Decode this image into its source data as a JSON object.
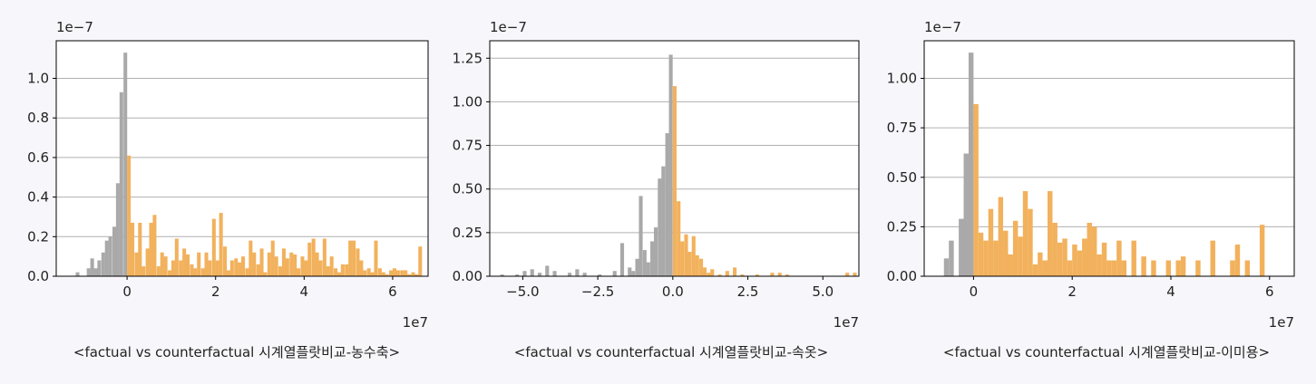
{
  "colors": {
    "negative_bar": "#a9a9a9",
    "positive_bar": "#f2b15c",
    "grid": "#b0b0b0",
    "axis": "#000000"
  },
  "chart_data": [
    {
      "type": "bar",
      "caption": "<factual vs counterfactual 시계열플랏비교-농수축>",
      "multiplier_y": "1e−7",
      "multiplier_x": "1e7",
      "xlim": [
        -1.6,
        6.8
      ],
      "ylim": [
        0,
        1.19
      ],
      "xticks": [
        0,
        2,
        4,
        6
      ],
      "xtick_labels": [
        "0",
        "2",
        "4",
        "6"
      ],
      "yticks": [
        0.0,
        0.2,
        0.4,
        0.6,
        0.8,
        1.0
      ],
      "ytick_labels": [
        "0.0",
        "0.2",
        "0.4",
        "0.6",
        "0.8",
        "1.0"
      ],
      "grid": "y",
      "bin_width": 0.083,
      "series": [
        {
          "color_key": "negative_bar",
          "x": [
            -1.16,
            -0.91,
            -0.83,
            -0.75,
            -0.67,
            -0.58,
            -0.5,
            -0.42,
            -0.33,
            -0.25,
            -0.17,
            -0.08
          ],
          "y": [
            0.02,
            0.04,
            0.09,
            0.04,
            0.08,
            0.12,
            0.18,
            0.2,
            0.25,
            0.47,
            0.93,
            1.13
          ]
        },
        {
          "color_key": "positive_bar",
          "x": [
            0.0,
            0.08,
            0.17,
            0.25,
            0.33,
            0.42,
            0.5,
            0.58,
            0.67,
            0.75,
            0.83,
            0.92,
            1.0,
            1.08,
            1.17,
            1.25,
            1.33,
            1.42,
            1.5,
            1.58,
            1.67,
            1.75,
            1.83,
            1.92,
            2.0,
            2.08,
            2.17,
            2.25,
            2.33,
            2.42,
            2.5,
            2.58,
            2.67,
            2.75,
            2.83,
            2.92,
            3.0,
            3.08,
            3.17,
            3.25,
            3.33,
            3.42,
            3.5,
            3.58,
            3.67,
            3.75,
            3.83,
            3.92,
            4.0,
            4.08,
            4.17,
            4.25,
            4.33,
            4.42,
            4.5,
            4.58,
            4.67,
            4.75,
            4.83,
            4.92,
            5.0,
            5.08,
            5.17,
            5.25,
            5.33,
            5.42,
            5.5,
            5.58,
            5.67,
            5.75,
            5.83,
            5.92,
            6.0,
            6.08,
            6.17,
            6.25,
            6.33,
            6.42,
            6.5,
            6.58,
            6.67
          ],
          "y": [
            0.61,
            0.27,
            0.12,
            0.27,
            0.05,
            0.14,
            0.27,
            0.31,
            0.05,
            0.12,
            0.1,
            0.03,
            0.08,
            0.19,
            0.08,
            0.14,
            0.11,
            0.06,
            0.04,
            0.12,
            0.04,
            0.12,
            0.08,
            0.29,
            0.08,
            0.32,
            0.15,
            0.03,
            0.08,
            0.09,
            0.07,
            0.1,
            0.04,
            0.18,
            0.12,
            0.06,
            0.14,
            0.02,
            0.12,
            0.18,
            0.1,
            0.05,
            0.14,
            0.09,
            0.12,
            0.11,
            0.04,
            0.1,
            0.08,
            0.17,
            0.19,
            0.12,
            0.08,
            0.19,
            0.05,
            0.1,
            0.04,
            0.02,
            0.06,
            0.06,
            0.18,
            0.18,
            0.14,
            0.08,
            0.03,
            0.04,
            0.02,
            0.18,
            0.04,
            0.02,
            0.01,
            0.03,
            0.04,
            0.03,
            0.03,
            0.03,
            0.01,
            0.02,
            0.01,
            0.15,
            0.0
          ]
        }
      ]
    },
    {
      "type": "bar",
      "caption": "<factual vs counterfactual 시계열플랏비교-속옷>",
      "multiplier_y": "1e−7",
      "multiplier_x": "1e7",
      "xlim": [
        -6.1,
        6.2
      ],
      "ylim": [
        0,
        1.35
      ],
      "xticks": [
        -5.0,
        -2.5,
        0.0,
        2.5,
        5.0
      ],
      "xtick_labels": [
        "−5.0",
        "−2.5",
        "0.0",
        "2.5",
        "5.0"
      ],
      "yticks": [
        0.0,
        0.25,
        0.5,
        0.75,
        1.0,
        1.25
      ],
      "ytick_labels": [
        "0.00",
        "0.25",
        "0.50",
        "0.75",
        "1.00",
        "1.25"
      ],
      "grid": "y",
      "bin_width": 0.125,
      "series": [
        {
          "color_key": "negative_bar",
          "x": [
            -5.75,
            -5.25,
            -5.0,
            -4.75,
            -4.5,
            -4.25,
            -4.0,
            -3.5,
            -3.25,
            -3.0,
            -2.5,
            -2.0,
            -1.75,
            -1.5,
            -1.38,
            -1.25,
            -1.13,
            -1.0,
            -0.88,
            -0.75,
            -0.63,
            -0.5,
            -0.38,
            -0.25,
            -0.13
          ],
          "y": [
            0.01,
            0.01,
            0.03,
            0.04,
            0.02,
            0.06,
            0.03,
            0.02,
            0.04,
            0.02,
            0.01,
            0.03,
            0.19,
            0.05,
            0.03,
            0.1,
            0.46,
            0.15,
            0.08,
            0.2,
            0.28,
            0.56,
            0.63,
            0.82,
            1.27
          ]
        },
        {
          "color_key": "positive_bar",
          "x": [
            0.0,
            0.13,
            0.25,
            0.38,
            0.5,
            0.63,
            0.75,
            0.88,
            1.0,
            1.13,
            1.25,
            1.5,
            1.75,
            2.0,
            2.25,
            2.75,
            3.25,
            3.5,
            3.75,
            5.75,
            6.0
          ],
          "y": [
            1.09,
            0.43,
            0.2,
            0.24,
            0.14,
            0.23,
            0.12,
            0.1,
            0.05,
            0.02,
            0.04,
            0.01,
            0.03,
            0.05,
            0.01,
            0.01,
            0.02,
            0.02,
            0.01,
            0.02,
            0.02
          ]
        }
      ]
    },
    {
      "type": "bar",
      "caption": "<factual vs counterfactual 시계열플랏비교-이미용>",
      "multiplier_y": "1e−7",
      "multiplier_x": "1e7",
      "xlim": [
        -1.0,
        6.5
      ],
      "ylim": [
        0,
        1.19
      ],
      "xticks": [
        0,
        2,
        4,
        6
      ],
      "xtick_labels": [
        "0",
        "2",
        "4",
        "6"
      ],
      "yticks": [
        0.0,
        0.25,
        0.5,
        0.75,
        1.0
      ],
      "ytick_labels": [
        "0.00",
        "0.25",
        "0.50",
        "0.75",
        "1.00"
      ],
      "grid": "y",
      "bin_width": 0.1,
      "series": [
        {
          "color_key": "negative_bar",
          "x": [
            -0.6,
            -0.5,
            -0.3,
            -0.2,
            -0.1
          ],
          "y": [
            0.09,
            0.18,
            0.29,
            0.62,
            1.13
          ]
        },
        {
          "color_key": "positive_bar",
          "x": [
            0.0,
            0.1,
            0.2,
            0.3,
            0.4,
            0.5,
            0.6,
            0.7,
            0.8,
            0.9,
            1.0,
            1.1,
            1.2,
            1.3,
            1.4,
            1.5,
            1.6,
            1.7,
            1.8,
            1.9,
            2.0,
            2.1,
            2.2,
            2.3,
            2.4,
            2.5,
            2.6,
            2.7,
            2.8,
            2.9,
            3.0,
            3.2,
            3.4,
            3.6,
            3.9,
            4.1,
            4.2,
            4.5,
            4.8,
            5.2,
            5.3,
            5.5,
            5.8
          ],
          "y": [
            0.87,
            0.22,
            0.18,
            0.34,
            0.18,
            0.4,
            0.23,
            0.11,
            0.28,
            0.2,
            0.43,
            0.34,
            0.06,
            0.12,
            0.08,
            0.43,
            0.27,
            0.17,
            0.19,
            0.08,
            0.16,
            0.13,
            0.19,
            0.27,
            0.25,
            0.11,
            0.17,
            0.08,
            0.08,
            0.18,
            0.08,
            0.18,
            0.1,
            0.08,
            0.08,
            0.08,
            0.1,
            0.08,
            0.18,
            0.08,
            0.16,
            0.08,
            0.26
          ]
        }
      ]
    }
  ]
}
